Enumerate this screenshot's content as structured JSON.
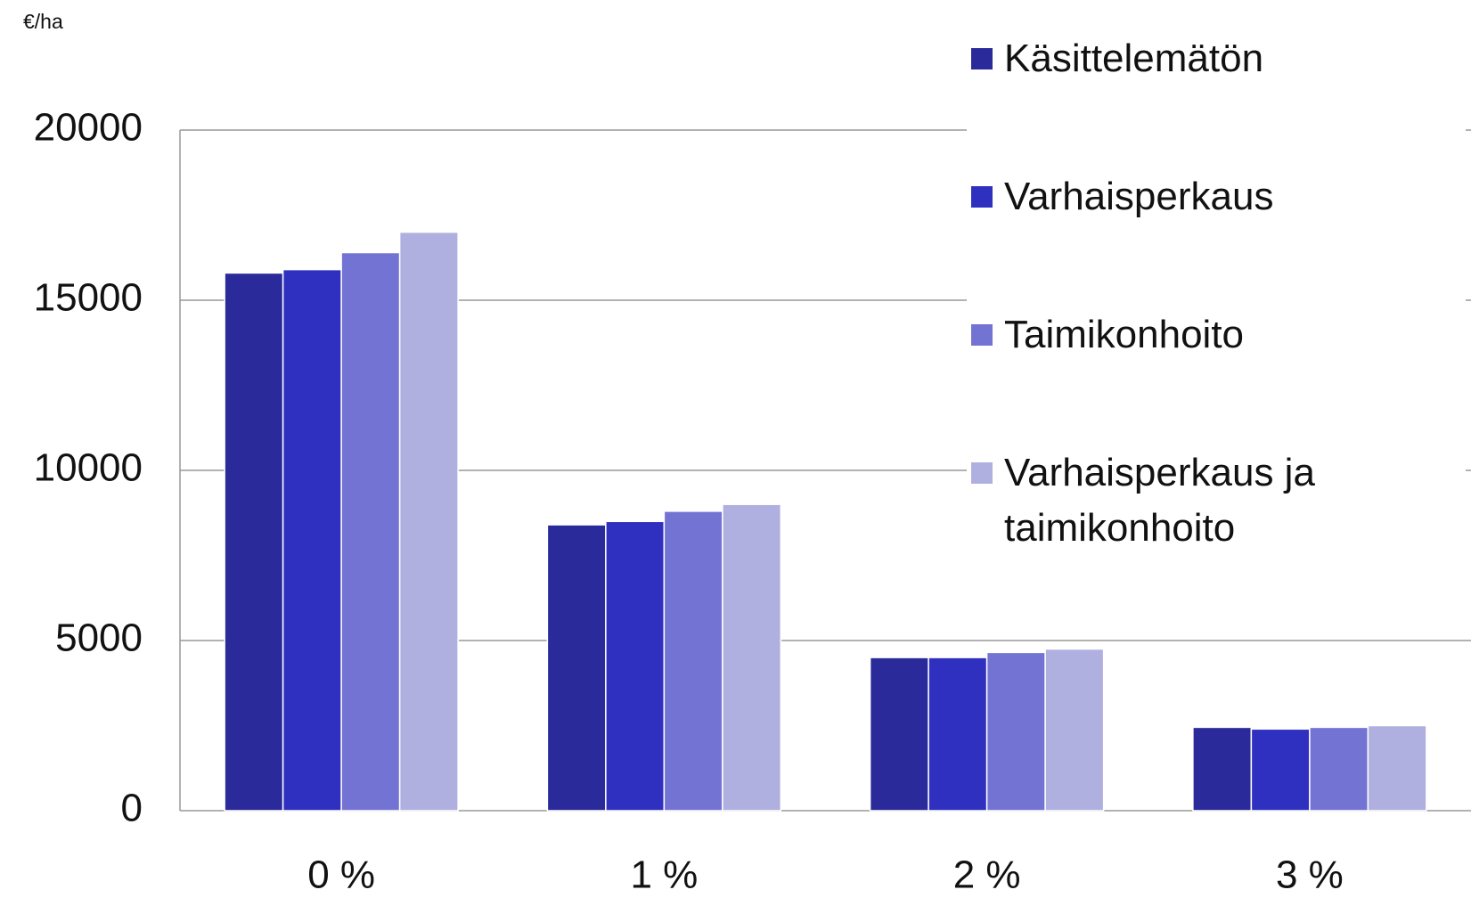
{
  "chart_data": {
    "type": "bar",
    "y_axis_label": "€/ha",
    "categories": [
      "0 %",
      "1 %",
      "2 %",
      "3 %"
    ],
    "series": [
      {
        "name": "Käsittelemätön",
        "color": "#2a2a9a",
        "values": [
          15800,
          8400,
          4500,
          2450
        ]
      },
      {
        "name": "Varhaisperkaus",
        "color": "#3030c0",
        "values": [
          15900,
          8500,
          4500,
          2400
        ]
      },
      {
        "name": "Taimikonhoito",
        "color": "#7373d4",
        "values": [
          16400,
          8800,
          4650,
          2450
        ]
      },
      {
        "name": "Varhaisperkaus ja taimikonhoito",
        "color": "#b0b0e0",
        "values": [
          17000,
          9000,
          4750,
          2500
        ]
      }
    ],
    "ylim": [
      0,
      20000
    ],
    "yticks": [
      0,
      5000,
      10000,
      15000,
      20000
    ],
    "grid": true,
    "legend": "right"
  }
}
